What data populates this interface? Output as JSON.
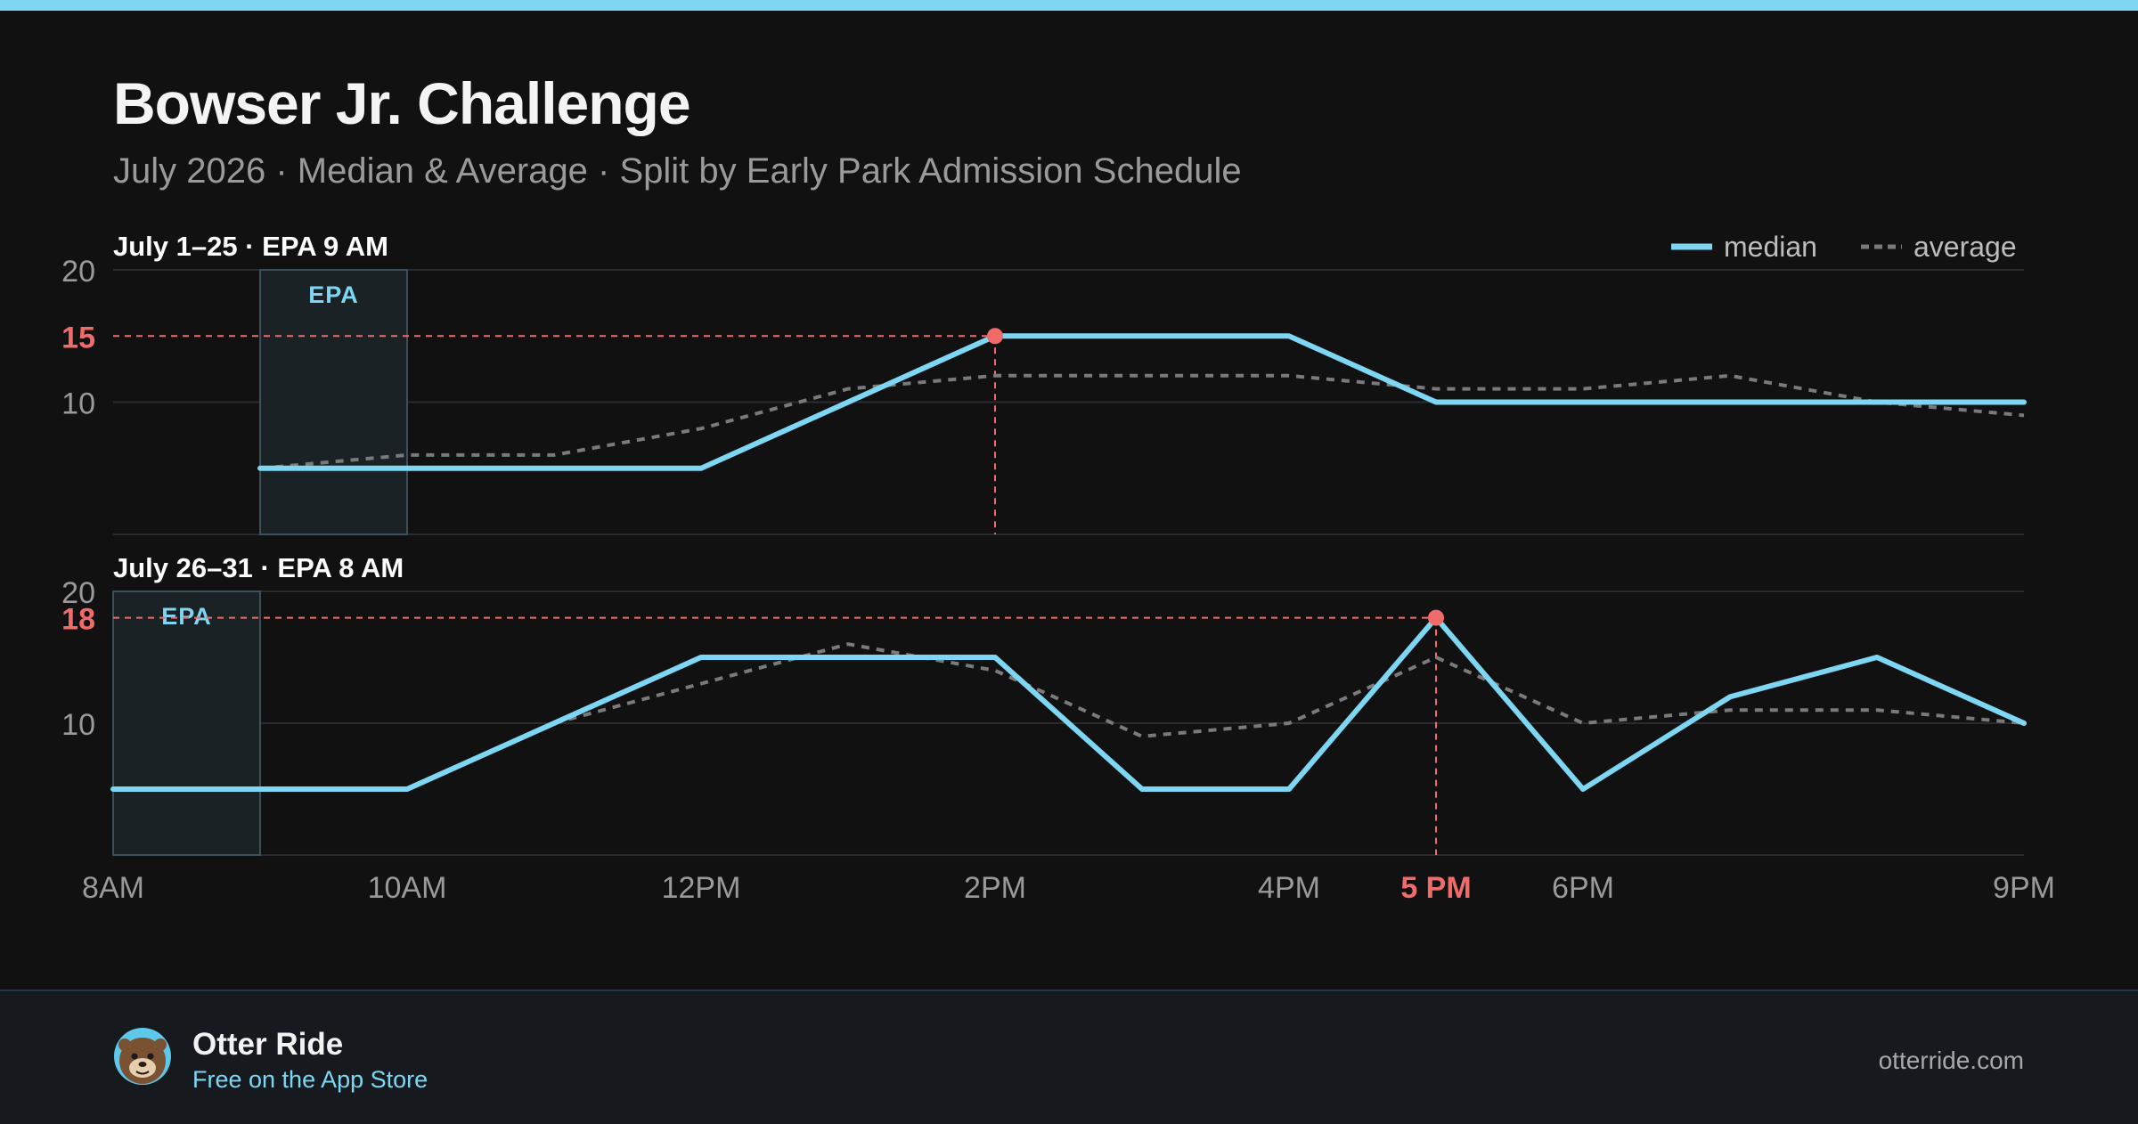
{
  "header": {
    "title": "Bowser Jr. Challenge",
    "subtitle": "July 2026 · Median & Average · Split by Early Park Admission Schedule"
  },
  "legend": {
    "median_label": "median",
    "average_label": "average"
  },
  "footer": {
    "app_name": "Otter Ride",
    "app_tagline": "Free on the App Store",
    "website": "otterride.com"
  },
  "colors": {
    "median": "#7dd6f2",
    "average": "#7a7a7a",
    "highlight": "#f26b6b",
    "background": "#111112"
  },
  "chart_data": {
    "type": "line",
    "x": [
      "8AM",
      "9AM",
      "10AM",
      "11AM",
      "12PM",
      "1PM",
      "2PM",
      "3PM",
      "4PM",
      "5PM",
      "6PM",
      "7PM",
      "8PM",
      "9PM"
    ],
    "x_tick_labels": [
      "8AM",
      "10AM",
      "12PM",
      "2PM",
      "4PM",
      "6PM",
      "9PM"
    ],
    "ylim": [
      0,
      20
    ],
    "y_tick_labels": [
      "10",
      "20"
    ],
    "legend_position": "top-right",
    "grid": true,
    "panels": [
      {
        "label": "July 1–25 · EPA 9 AM",
        "epa_label": "EPA",
        "epa_window": [
          "9AM",
          "10AM"
        ],
        "series": [
          {
            "name": "median",
            "values": [
              null,
              5,
              5,
              5,
              5,
              10,
              15,
              15,
              15,
              10,
              10,
              10,
              10,
              10
            ]
          },
          {
            "name": "average",
            "values": [
              null,
              5,
              6,
              6,
              8,
              11,
              12,
              12,
              12,
              11,
              11,
              12,
              10,
              9
            ]
          }
        ],
        "peak": {
          "x": "2PM",
          "value": 15,
          "y_label": "15"
        }
      },
      {
        "label": "July 26–31 · EPA 8 AM",
        "epa_label": "EPA",
        "epa_window": [
          "8AM",
          "9AM"
        ],
        "series": [
          {
            "name": "median",
            "values": [
              5,
              5,
              5,
              10,
              15,
              15,
              15,
              5,
              5,
              18,
              5,
              12,
              15,
              10
            ]
          },
          {
            "name": "average",
            "values": [
              null,
              null,
              null,
              10,
              13,
              16,
              14,
              9,
              10,
              15,
              10,
              11,
              11,
              10
            ]
          }
        ],
        "peak": {
          "x": "5 PM",
          "value": 18,
          "y_label": "18"
        }
      }
    ]
  }
}
